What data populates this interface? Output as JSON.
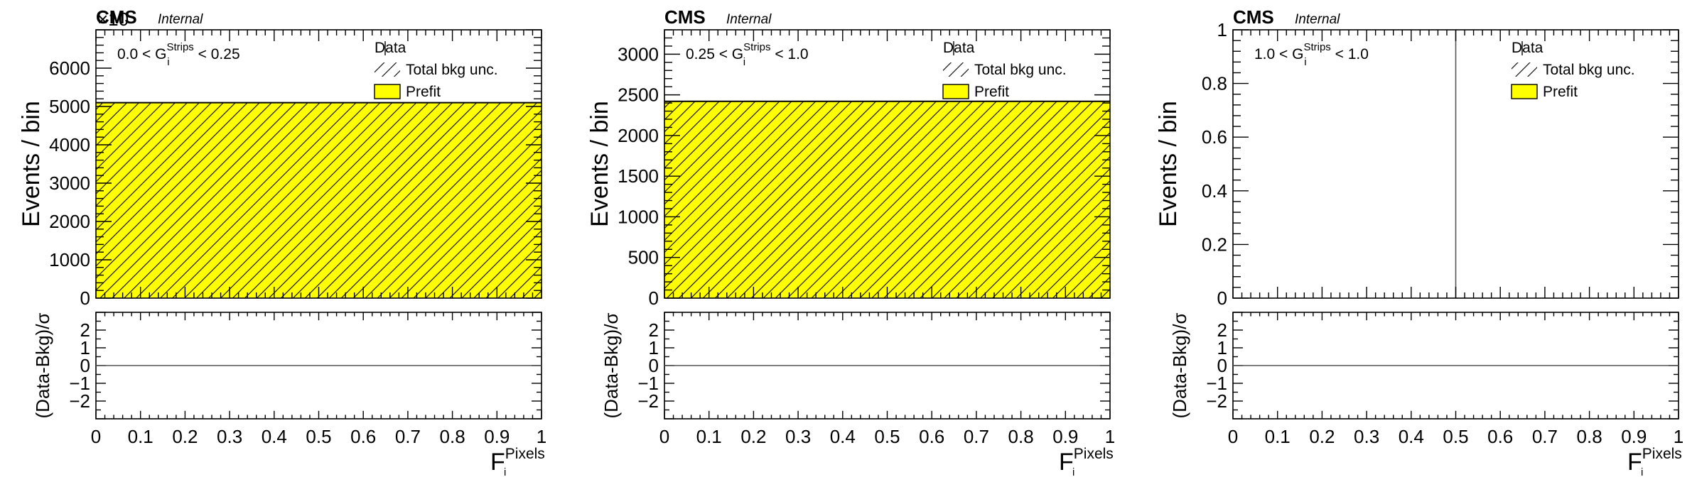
{
  "chart_data": [
    {
      "type": "bar",
      "cms_label": "CMS",
      "status_label": "Internal",
      "region": {
        "pre": "0.0 < G",
        "sup": "Strips",
        "sub": "i",
        "post": "< 0.25"
      },
      "ylabel": "Events / bin",
      "xlabel": {
        "main": "F",
        "sup": "Pixels",
        "sub": "i"
      },
      "ratio_ylabel": "(Data-Bkg)/σ",
      "xlim": [
        0,
        1
      ],
      "ylim": [
        0,
        7000
      ],
      "yticks": [
        0,
        1000,
        2000,
        3000,
        4000,
        5000,
        6000
      ],
      "ytick_labels": [
        "0",
        "1000",
        "2000",
        "3000",
        "4000",
        "5000",
        "6000"
      ],
      "xticks": [
        0,
        0.1,
        0.2,
        0.3,
        0.4,
        0.5,
        0.6,
        0.7,
        0.8,
        0.9,
        1
      ],
      "xtick_labels": [
        "0",
        "0.1",
        "0.2",
        "0.3",
        "0.4",
        "0.5",
        "0.6",
        "0.7",
        "0.8",
        "0.9",
        "1"
      ],
      "ratio_ylim": [
        -3,
        3
      ],
      "ratio_yticks": [
        2,
        1,
        0,
        -1,
        -2
      ],
      "ratio_ytick_labels": [
        "2",
        "1",
        "0",
        "−1",
        "−2"
      ],
      "legend": {
        "placement": "top-right",
        "entries": [
          "Data",
          "Total bkg unc.",
          "Prefit"
        ]
      },
      "bins": [
        {
          "x_low": 0,
          "x_high": 1,
          "prefit": 5100
        }
      ],
      "exponent_label": "×10"
    },
    {
      "type": "bar",
      "cms_label": "CMS",
      "status_label": "Internal",
      "region": {
        "pre": "0.25 < G",
        "sup": "Strips",
        "sub": "i",
        "post": "< 1.0"
      },
      "ylabel": "Events / bin",
      "xlabel": {
        "main": "F",
        "sup": "Pixels",
        "sub": "i"
      },
      "ratio_ylabel": "(Data-Bkg)/σ",
      "xlim": [
        0,
        1
      ],
      "ylim": [
        0,
        3300
      ],
      "yticks": [
        0,
        500,
        1000,
        1500,
        2000,
        2500,
        3000
      ],
      "ytick_labels": [
        "0",
        "500",
        "1000",
        "1500",
        "2000",
        "2500",
        "3000"
      ],
      "xticks": [
        0,
        0.1,
        0.2,
        0.3,
        0.4,
        0.5,
        0.6,
        0.7,
        0.8,
        0.9,
        1
      ],
      "xtick_labels": [
        "0",
        "0.1",
        "0.2",
        "0.3",
        "0.4",
        "0.5",
        "0.6",
        "0.7",
        "0.8",
        "0.9",
        "1"
      ],
      "ratio_ylim": [
        -3,
        3
      ],
      "ratio_yticks": [
        2,
        1,
        0,
        -1,
        -2
      ],
      "ratio_ytick_labels": [
        "2",
        "1",
        "0",
        "−1",
        "−2"
      ],
      "legend": {
        "placement": "top-right",
        "entries": [
          "Data",
          "Total bkg unc.",
          "Prefit"
        ]
      },
      "bins": [
        {
          "x_low": 0,
          "x_high": 1,
          "prefit": 2420
        }
      ],
      "exponent_label": ""
    },
    {
      "type": "bar",
      "cms_label": "CMS",
      "status_label": "Internal",
      "region": {
        "pre": "1.0 < G",
        "sup": "Strips",
        "sub": "i",
        "post": "< 1.0"
      },
      "ylabel": "Events / bin",
      "xlabel": {
        "main": "F",
        "sup": "Pixels",
        "sub": "i"
      },
      "ratio_ylabel": "(Data-Bkg)/σ",
      "xlim": [
        0,
        1
      ],
      "ylim": [
        0,
        1
      ],
      "yticks": [
        0,
        0.2,
        0.4,
        0.6,
        0.8,
        1
      ],
      "ytick_labels": [
        "0",
        "0.2",
        "0.4",
        "0.6",
        "0.8",
        "1"
      ],
      "xticks": [
        0,
        0.1,
        0.2,
        0.3,
        0.4,
        0.5,
        0.6,
        0.7,
        0.8,
        0.9,
        1
      ],
      "xtick_labels": [
        "0",
        "0.1",
        "0.2",
        "0.3",
        "0.4",
        "0.5",
        "0.6",
        "0.7",
        "0.8",
        "0.9",
        "1"
      ],
      "ratio_ylim": [
        -3,
        3
      ],
      "ratio_yticks": [
        2,
        1,
        0,
        -1,
        -2
      ],
      "ratio_ytick_labels": [
        "2",
        "1",
        "0",
        "−1",
        "−2"
      ],
      "legend": {
        "placement": "top-right",
        "entries": [
          "Data",
          "Total bkg unc.",
          "Prefit"
        ]
      },
      "bins": [],
      "exponent_label": ""
    }
  ],
  "colors": {
    "prefit_fill": "#ffff00",
    "hatch": "#000000",
    "frame": "#000000"
  }
}
